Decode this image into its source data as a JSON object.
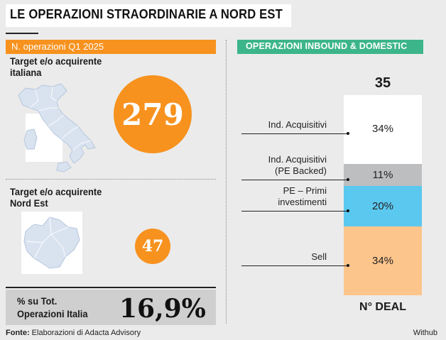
{
  "header": {
    "title": "LE OPERAZIONI STRAORDINARIE A NORD EST"
  },
  "left_panel": {
    "band_label": "N. operazioni Q1 2025",
    "italy": {
      "label_line1": "Target e/o acquirente",
      "label_line2": "italiana",
      "value": "279"
    },
    "north_east": {
      "label_line1": "Target e/o acquirente",
      "label_line2": "Nord Est",
      "value": "47"
    },
    "share": {
      "label_line1": "% su Tot.",
      "label_line2": "Operazioni Italia",
      "value": "16,9%"
    }
  },
  "right_panel": {
    "band_label": "OPERAZIONI INBOUND & DOMESTIC"
  },
  "chart_data": {
    "type": "bar",
    "stacked": true,
    "total_label": "35",
    "xlabel": "N° DEAL",
    "categories": [
      "Ind. Acquisitivi",
      "Ind. Acquisitivi\n(PE Backed)",
      "PE - Primi\ninvestimenti",
      "Sell"
    ],
    "series": [
      {
        "label_lines": [
          "Ind. Acquisitivi"
        ],
        "value": 34,
        "display": "34%",
        "color": "#ffffff"
      },
      {
        "label_lines": [
          "Ind. Acquisitivi",
          "(PE Backed)"
        ],
        "value": 11,
        "display": "11%",
        "color": "#bcbec0"
      },
      {
        "label_lines": [
          "PE – Primi",
          "investimenti"
        ],
        "value": 20,
        "display": "20%",
        "color": "#5bc8f0"
      },
      {
        "label_lines": [
          "Sell"
        ],
        "value": 34,
        "display": "34%",
        "color": "#fcc58c"
      }
    ],
    "unit": "%"
  },
  "footer": {
    "source_label": "Fonte:",
    "source_text": "Elaborazioni di Adacta Advisory",
    "brand": "Withub"
  },
  "colors": {
    "accent_orange": "#f7921e",
    "accent_green": "#3cb58a",
    "background": "#ebebeb"
  }
}
